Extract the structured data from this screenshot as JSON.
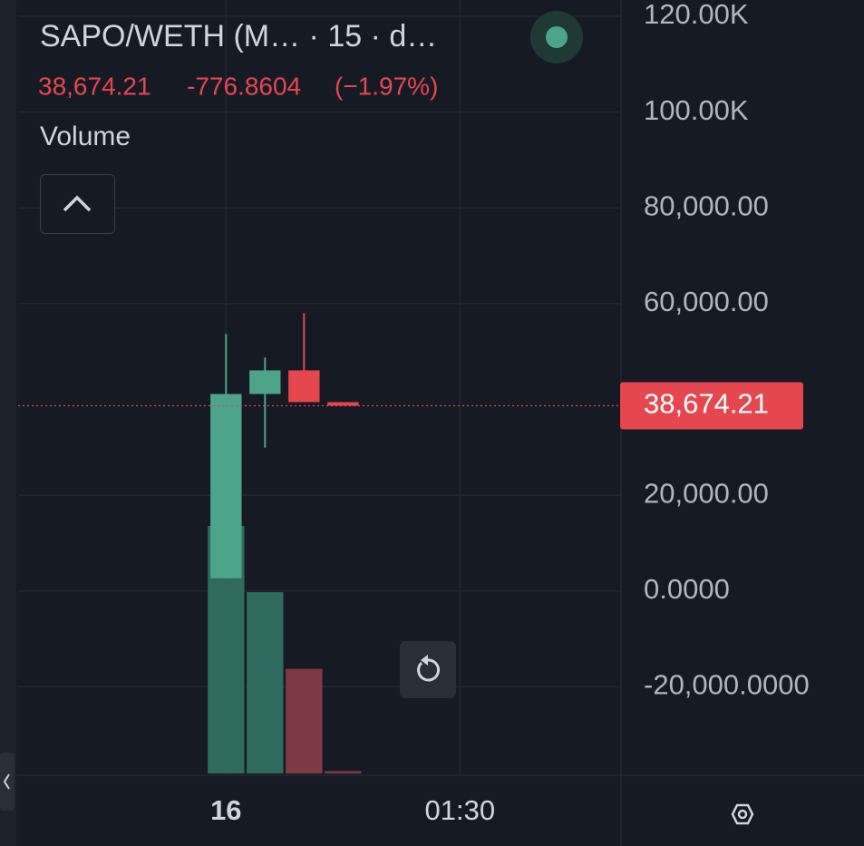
{
  "chart_data": {
    "type": "candlestick",
    "title": "SAPO/WETH (M… · 15 · d…",
    "last_price": {
      "value": 38674.21,
      "label": "38,674.21"
    },
    "change": "-776.8604",
    "change_percent": "(−1.97%)",
    "volume_label": "Volume",
    "x": [
      0,
      15,
      30,
      45
    ],
    "open": [
      2654,
      41137,
      46067,
      39431
    ],
    "high": [
      53650,
      48720,
      58000,
      39431
    ],
    "low": [
      2654,
      29950,
      39431,
      38674.21
    ],
    "close": [
      41137,
      46067,
      39431,
      38674.21
    ],
    "volume": [
      213,
      156,
      90,
      2
    ],
    "up_color": "#4ca58b",
    "down_color": "#e5474f",
    "volume_up_color": "#2e6b5e",
    "volume_down_color": "#7e3a44",
    "xlim": [
      -80,
      152
    ],
    "xticks": [
      {
        "value": 0,
        "label": "16"
      },
      {
        "value": 90,
        "label": "01:30"
      }
    ],
    "ylim": [
      -38480,
      123400
    ],
    "yticks": [
      {
        "value": 120000,
        "label": "120.00K"
      },
      {
        "value": 100000,
        "label": "100.00K"
      },
      {
        "value": 80000,
        "label": "80,000.00"
      },
      {
        "value": 60000,
        "label": "60,000.00"
      },
      {
        "value": 20000,
        "label": "20,000.00"
      },
      {
        "value": 0,
        "label": "0.0000"
      },
      {
        "value": -20000,
        "label": "-20,000.0000"
      }
    ],
    "grid": true
  }
}
